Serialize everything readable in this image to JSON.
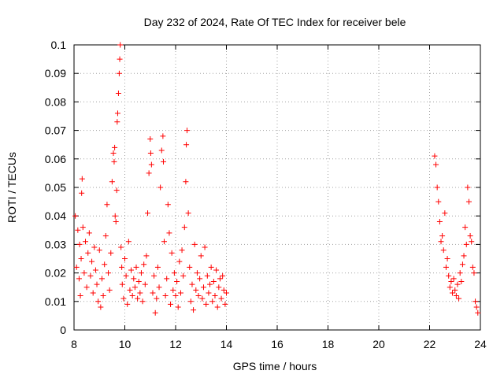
{
  "chart_data": {
    "type": "scatter",
    "title": "Day 232 of 2024, Rate Of TEC Index for receiver bele",
    "xlabel": "GPS time / hours",
    "ylabel": "ROTI / TECUs",
    "xlim": [
      8,
      24
    ],
    "ylim": [
      0,
      0.1
    ],
    "x_ticks": [
      8,
      10,
      12,
      14,
      16,
      18,
      20,
      22,
      24
    ],
    "y_ticks": [
      0,
      0.01,
      0.02,
      0.03,
      0.04,
      0.05,
      0.06,
      0.07,
      0.08,
      0.09,
      0.1
    ],
    "x_tick_labels": [
      "8",
      "10",
      "12",
      "14",
      "16",
      "18",
      "20",
      "22",
      "24"
    ],
    "y_tick_labels": [
      "0",
      "0.01",
      "0.02",
      "0.03",
      "0.04",
      "0.05",
      "0.06",
      "0.07",
      "0.08",
      "0.09",
      "0.1"
    ],
    "grid": true,
    "marker": "+",
    "color": "#ff0000",
    "series": [
      {
        "points": [
          [
            8.05,
            0.04
          ],
          [
            8.1,
            0.022
          ],
          [
            8.15,
            0.035
          ],
          [
            8.2,
            0.018
          ],
          [
            8.22,
            0.03
          ],
          [
            8.25,
            0.012
          ],
          [
            8.28,
            0.025
          ],
          [
            8.3,
            0.048
          ],
          [
            8.32,
            0.053
          ],
          [
            8.35,
            0.036
          ],
          [
            8.4,
            0.02
          ],
          [
            8.45,
            0.031
          ],
          [
            8.5,
            0.015
          ],
          [
            8.55,
            0.027
          ],
          [
            8.6,
            0.034
          ],
          [
            8.65,
            0.019
          ],
          [
            8.7,
            0.024
          ],
          [
            8.75,
            0.013
          ],
          [
            8.8,
            0.029
          ],
          [
            8.85,
            0.021
          ],
          [
            8.9,
            0.016
          ],
          [
            8.95,
            0.01
          ],
          [
            9.0,
            0.028
          ],
          [
            9.05,
            0.008
          ],
          [
            9.1,
            0.018
          ],
          [
            9.15,
            0.012
          ],
          [
            9.2,
            0.023
          ],
          [
            9.25,
            0.033
          ],
          [
            9.3,
            0.044
          ],
          [
            9.35,
            0.02
          ],
          [
            9.4,
            0.014
          ],
          [
            9.45,
            0.027
          ],
          [
            9.5,
            0.052
          ],
          [
            9.55,
            0.062
          ],
          [
            9.58,
            0.059
          ],
          [
            9.6,
            0.064
          ],
          [
            9.62,
            0.04
          ],
          [
            9.65,
            0.038
          ],
          [
            9.68,
            0.049
          ],
          [
            9.7,
            0.073
          ],
          [
            9.72,
            0.076
          ],
          [
            9.75,
            0.083
          ],
          [
            9.78,
            0.09
          ],
          [
            9.8,
            0.095
          ],
          [
            9.82,
            0.1
          ],
          [
            9.85,
            0.029
          ],
          [
            9.88,
            0.022
          ],
          [
            9.9,
            0.016
          ],
          [
            9.95,
            0.011
          ],
          [
            10.0,
            0.025
          ],
          [
            10.05,
            0.019
          ],
          [
            10.1,
            0.009
          ],
          [
            10.15,
            0.031
          ],
          [
            10.2,
            0.014
          ],
          [
            10.25,
            0.021
          ],
          [
            10.3,
            0.012
          ],
          [
            10.35,
            0.018
          ],
          [
            10.4,
            0.015
          ],
          [
            10.45,
            0.022
          ],
          [
            10.5,
            0.011
          ],
          [
            10.55,
            0.017
          ],
          [
            10.6,
            0.013
          ],
          [
            10.65,
            0.02
          ],
          [
            10.7,
            0.01
          ],
          [
            10.75,
            0.023
          ],
          [
            10.8,
            0.016
          ],
          [
            10.85,
            0.026
          ],
          [
            10.9,
            0.041
          ],
          [
            10.95,
            0.055
          ],
          [
            11.0,
            0.067
          ],
          [
            11.02,
            0.062
          ],
          [
            11.05,
            0.058
          ],
          [
            11.1,
            0.013
          ],
          [
            11.15,
            0.019
          ],
          [
            11.2,
            0.006
          ],
          [
            11.25,
            0.011
          ],
          [
            11.3,
            0.022
          ],
          [
            11.35,
            0.015
          ],
          [
            11.4,
            0.05
          ],
          [
            11.45,
            0.063
          ],
          [
            11.5,
            0.068
          ],
          [
            11.52,
            0.059
          ],
          [
            11.55,
            0.031
          ],
          [
            11.6,
            0.012
          ],
          [
            11.65,
            0.018
          ],
          [
            11.7,
            0.044
          ],
          [
            11.75,
            0.034
          ],
          [
            11.8,
            0.009
          ],
          [
            11.85,
            0.027
          ],
          [
            11.9,
            0.014
          ],
          [
            11.95,
            0.02
          ],
          [
            12.0,
            0.012
          ],
          [
            12.05,
            0.017
          ],
          [
            12.1,
            0.008
          ],
          [
            12.15,
            0.024
          ],
          [
            12.2,
            0.013
          ],
          [
            12.25,
            0.028
          ],
          [
            12.3,
            0.019
          ],
          [
            12.35,
            0.036
          ],
          [
            12.4,
            0.052
          ],
          [
            12.42,
            0.065
          ],
          [
            12.45,
            0.07
          ],
          [
            12.5,
            0.041
          ],
          [
            12.55,
            0.022
          ],
          [
            12.6,
            0.01
          ],
          [
            12.65,
            0.016
          ],
          [
            12.7,
            0.007
          ],
          [
            12.75,
            0.03
          ],
          [
            12.8,
            0.014
          ],
          [
            12.85,
            0.02
          ],
          [
            12.9,
            0.012
          ],
          [
            12.95,
            0.018
          ],
          [
            13.0,
            0.026
          ],
          [
            13.05,
            0.011
          ],
          [
            13.1,
            0.015
          ],
          [
            13.15,
            0.029
          ],
          [
            13.2,
            0.009
          ],
          [
            13.25,
            0.019
          ],
          [
            13.3,
            0.013
          ],
          [
            13.35,
            0.016
          ],
          [
            13.4,
            0.022
          ],
          [
            13.45,
            0.01
          ],
          [
            13.5,
            0.017
          ],
          [
            13.55,
            0.012
          ],
          [
            13.6,
            0.021
          ],
          [
            13.65,
            0.008
          ],
          [
            13.7,
            0.015
          ],
          [
            13.75,
            0.018
          ],
          [
            13.8,
            0.011
          ],
          [
            13.85,
            0.019
          ],
          [
            13.9,
            0.014
          ],
          [
            13.95,
            0.009
          ],
          [
            14.0,
            0.013
          ],
          [
            22.2,
            0.061
          ],
          [
            22.25,
            0.058
          ],
          [
            22.3,
            0.05
          ],
          [
            22.35,
            0.045
          ],
          [
            22.4,
            0.038
          ],
          [
            22.45,
            0.031
          ],
          [
            22.5,
            0.033
          ],
          [
            22.55,
            0.028
          ],
          [
            22.6,
            0.041
          ],
          [
            22.65,
            0.022
          ],
          [
            22.7,
            0.025
          ],
          [
            22.75,
            0.019
          ],
          [
            22.8,
            0.015
          ],
          [
            22.85,
            0.017
          ],
          [
            22.9,
            0.013
          ],
          [
            22.95,
            0.018
          ],
          [
            23.0,
            0.014
          ],
          [
            23.05,
            0.012
          ],
          [
            23.1,
            0.016
          ],
          [
            23.15,
            0.011
          ],
          [
            23.2,
            0.02
          ],
          [
            23.25,
            0.017
          ],
          [
            23.3,
            0.023
          ],
          [
            23.35,
            0.026
          ],
          [
            23.4,
            0.036
          ],
          [
            23.45,
            0.03
          ],
          [
            23.5,
            0.05
          ],
          [
            23.55,
            0.045
          ],
          [
            23.6,
            0.033
          ],
          [
            23.65,
            0.031
          ],
          [
            23.7,
            0.022
          ],
          [
            23.75,
            0.02
          ],
          [
            23.8,
            0.01
          ],
          [
            23.85,
            0.008
          ],
          [
            23.9,
            0.006
          ]
        ]
      }
    ]
  }
}
